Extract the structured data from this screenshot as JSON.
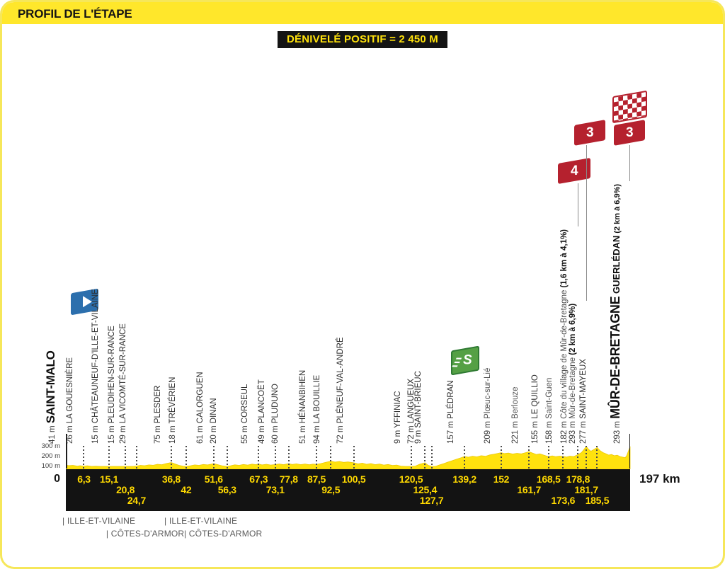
{
  "header": {
    "title": "PROFIL DE L'ÉTAPE"
  },
  "banner": {
    "text": "DÉNIVELÉ POSITIF = 2 450 M"
  },
  "axis": {
    "y_ticks": [
      "300 m",
      "200 m",
      "100 m"
    ],
    "start_label": "0",
    "end_label": "197 km"
  },
  "departments": [
    {
      "label": "| ILLE-ET-VILAINE",
      "km": 0,
      "row": 0
    },
    {
      "label": "| CÔTES-D'ARMOR",
      "km": 15.3,
      "row": 1
    },
    {
      "label": "| ILLE-ET-VILAINE",
      "km": 35.6,
      "row": 0
    },
    {
      "label": "| CÔTES-D'ARMOR",
      "km": 42.5,
      "row": 1
    }
  ],
  "colors": {
    "yellow": "#FFE72B",
    "profile_yellow": "#FFE20E",
    "bar_black": "#131313",
    "distance_yellow": "#FFD900",
    "climb_red": "#B5212E",
    "sprint_green": "#55A045",
    "start_blue": "#2C6FAD"
  },
  "chart_data": {
    "type": "area",
    "title": "Profil de l'étape",
    "xlabel": "km",
    "ylabel": "m",
    "xlim": [
      0,
      197
    ],
    "ylim": [
      0,
      320
    ],
    "total_km": 197,
    "denivele_positif_m": 2450,
    "markers": [
      {
        "km": 0,
        "dist": null,
        "dist_row": null,
        "elev": "41 m",
        "name": "SAINT-MALO",
        "kind": "start",
        "icon": "start"
      },
      {
        "km": 6.3,
        "dist": "6,3",
        "dist_row": 0,
        "elev": "26 m",
        "name": "LA GOUESNIÈRE",
        "kind": "town"
      },
      {
        "km": 15.1,
        "dist": "15,1",
        "dist_row": 0,
        "elev": "15 m",
        "name": "CHÂTEAUNEUF-D'ILLE-ET-VILAINE",
        "kind": "town"
      },
      {
        "km": 20.8,
        "dist": "20,8",
        "dist_row": 1,
        "elev": "15 m",
        "name": "PLEUDIHEN-SUR-RANCE",
        "kind": "town"
      },
      {
        "km": 24.7,
        "dist": "24,7",
        "dist_row": 2,
        "elev": "29 m",
        "name": "LA VICOMTÉ-SUR-RANCE",
        "kind": "town"
      },
      {
        "km": 36.8,
        "dist": "36,8",
        "dist_row": 0,
        "elev": "75 m",
        "name": "PLESDER",
        "kind": "town"
      },
      {
        "km": 42,
        "dist": "42",
        "dist_row": 1,
        "elev": "18 m",
        "name": "TRÉVÉRIEN",
        "kind": "town"
      },
      {
        "km": 51.6,
        "dist": "51,6",
        "dist_row": 0,
        "elev": "61 m",
        "name": "CALORGUEN",
        "kind": "town"
      },
      {
        "km": 56.3,
        "dist": "56,3",
        "dist_row": 1,
        "elev": "20 m",
        "name": "DINAN",
        "kind": "town"
      },
      {
        "km": 67.3,
        "dist": "67,3",
        "dist_row": 0,
        "elev": "55 m",
        "name": "CORSEUL",
        "kind": "town"
      },
      {
        "km": 73.1,
        "dist": "73,1",
        "dist_row": 1,
        "elev": "49 m",
        "name": "PLANCOËT",
        "kind": "town"
      },
      {
        "km": 77.8,
        "dist": "77,8",
        "dist_row": 0,
        "elev": "60 m",
        "name": "PLUDUNO",
        "kind": "town"
      },
      {
        "km": 87.5,
        "dist": "87,5",
        "dist_row": 0,
        "elev": "51 m",
        "name": "HÉNANBIHEN",
        "kind": "town"
      },
      {
        "km": 92.5,
        "dist": "92,5",
        "dist_row": 1,
        "elev": "94 m",
        "name": "LA BOUILLIE",
        "kind": "town"
      },
      {
        "km": 100.5,
        "dist": "100,5",
        "dist_row": 0,
        "elev": "72 m",
        "name": "PLÉNEUF-VAL-ANDRÉ",
        "kind": "town"
      },
      {
        "km": 120.5,
        "dist": "120,5",
        "dist_row": 0,
        "elev": "9 m",
        "name": "YFFINIAC",
        "kind": "town"
      },
      {
        "km": 125.4,
        "dist": "125,4",
        "dist_row": 1,
        "elev": "72 m",
        "name": "LANGUEUX",
        "kind": "town"
      },
      {
        "km": 127.7,
        "dist": "127,7",
        "dist_row": 2,
        "elev": "9 m",
        "name": "SAINT-BRIEUC",
        "kind": "town"
      },
      {
        "km": 139.2,
        "dist": "139,2",
        "dist_row": 0,
        "elev": "157 m",
        "name": "PLÉDRAN",
        "kind": "town",
        "icon": "sprint"
      },
      {
        "km": 152,
        "dist": "152",
        "dist_row": 0,
        "elev": "209 m",
        "name": "Plœuc-sur-Lié",
        "kind": "village"
      },
      {
        "km": 161.7,
        "dist": "161,7",
        "dist_row": 1,
        "elev": "221 m",
        "name": "Berlouze",
        "kind": "village"
      },
      {
        "km": 168.5,
        "dist": "168,5",
        "dist_row": 0,
        "elev": "155 m",
        "name": "LE QUILLIO",
        "kind": "town"
      },
      {
        "km": 173.6,
        "dist": "173,6",
        "dist_row": 2,
        "elev": "158 m",
        "name": "Saint-Guen",
        "kind": "village"
      },
      {
        "km": 178.8,
        "dist": "178,8",
        "dist_row": 0,
        "elev": "182 m",
        "name": "Côte du village de Mûr-de-Bretagne",
        "climb": "(1,6 km à 4,1%)",
        "kind": "village",
        "icon": "cat4"
      },
      {
        "km": 181.7,
        "dist": "181,7",
        "dist_row": 1,
        "elev": "293 m",
        "name": "Mûr-de-Bretagne",
        "climb": "(2 km à 6,9%)",
        "kind": "village",
        "icon": "cat3"
      },
      {
        "km": 185.5,
        "dist": "185,5",
        "dist_row": 2,
        "elev": "277 m",
        "name": "SAINT-MAYEUX",
        "kind": "town"
      },
      {
        "km": 197,
        "dist": null,
        "dist_row": null,
        "elev": "293 m",
        "name": "MÛR-DE-BRETAGNE",
        "subname": "GUERLÉDAN",
        "climb": "(2 km à 6,9%)",
        "kind": "finish",
        "icon": "finish"
      }
    ],
    "profile": [
      [
        0,
        41
      ],
      [
        1,
        34
      ],
      [
        2.5,
        38
      ],
      [
        4,
        28
      ],
      [
        5,
        33
      ],
      [
        6.3,
        26
      ],
      [
        7.5,
        31
      ],
      [
        9,
        20
      ],
      [
        10.5,
        26
      ],
      [
        12,
        18
      ],
      [
        13.5,
        24
      ],
      [
        15.1,
        15
      ],
      [
        16.5,
        22
      ],
      [
        18,
        16
      ],
      [
        19.5,
        21
      ],
      [
        20.8,
        15
      ],
      [
        22,
        22
      ],
      [
        23.5,
        18
      ],
      [
        24.7,
        29
      ],
      [
        26,
        38
      ],
      [
        27.5,
        33
      ],
      [
        29,
        44
      ],
      [
        30.5,
        39
      ],
      [
        32,
        52
      ],
      [
        33.5,
        47
      ],
      [
        35,
        62
      ],
      [
        36.8,
        75
      ],
      [
        38,
        58
      ],
      [
        39.5,
        38
      ],
      [
        41,
        26
      ],
      [
        42,
        18
      ],
      [
        43.5,
        32
      ],
      [
        45,
        44
      ],
      [
        46.5,
        38
      ],
      [
        48,
        50
      ],
      [
        49.5,
        44
      ],
      [
        51.6,
        61
      ],
      [
        53,
        48
      ],
      [
        54.5,
        32
      ],
      [
        56.3,
        20
      ],
      [
        57.5,
        32
      ],
      [
        59,
        45
      ],
      [
        60.5,
        38
      ],
      [
        62,
        50
      ],
      [
        63.5,
        42
      ],
      [
        65,
        54
      ],
      [
        66.3,
        48
      ],
      [
        67.3,
        55
      ],
      [
        68.5,
        44
      ],
      [
        70,
        52
      ],
      [
        71.5,
        42
      ],
      [
        73.1,
        49
      ],
      [
        74.5,
        56
      ],
      [
        76,
        48
      ],
      [
        77.8,
        60
      ],
      [
        79,
        50
      ],
      [
        80.5,
        58
      ],
      [
        82,
        48
      ],
      [
        83.5,
        56
      ],
      [
        85,
        46
      ],
      [
        86.3,
        54
      ],
      [
        87.5,
        51
      ],
      [
        89,
        62
      ],
      [
        90.5,
        76
      ],
      [
        92.5,
        94
      ],
      [
        94,
        82
      ],
      [
        95.5,
        90
      ],
      [
        97,
        78
      ],
      [
        98.5,
        84
      ],
      [
        100.5,
        72
      ],
      [
        102,
        58
      ],
      [
        103.5,
        68
      ],
      [
        105,
        52
      ],
      [
        106.5,
        62
      ],
      [
        108,
        48
      ],
      [
        109.5,
        56
      ],
      [
        111,
        42
      ],
      [
        112.5,
        50
      ],
      [
        114,
        36
      ],
      [
        115.5,
        42
      ],
      [
        117,
        28
      ],
      [
        118.5,
        20
      ],
      [
        120.5,
        9
      ],
      [
        122,
        28
      ],
      [
        123.5,
        52
      ],
      [
        125.4,
        72
      ],
      [
        126.5,
        38
      ],
      [
        127.7,
        9
      ],
      [
        129,
        22
      ],
      [
        130.5,
        44
      ],
      [
        132,
        62
      ],
      [
        133.5,
        84
      ],
      [
        135,
        102
      ],
      [
        136.5,
        122
      ],
      [
        138,
        140
      ],
      [
        139.2,
        157
      ],
      [
        140.5,
        148
      ],
      [
        142,
        160
      ],
      [
        143.5,
        152
      ],
      [
        145,
        168
      ],
      [
        146.5,
        160
      ],
      [
        148,
        178
      ],
      [
        149.5,
        188
      ],
      [
        151,
        200
      ],
      [
        152,
        209
      ],
      [
        153,
        196
      ],
      [
        154.5,
        204
      ],
      [
        156,
        190
      ],
      [
        157.5,
        200
      ],
      [
        159,
        192
      ],
      [
        160.3,
        206
      ],
      [
        161.7,
        221
      ],
      [
        163,
        202
      ],
      [
        164.3,
        184
      ],
      [
        165.5,
        192
      ],
      [
        166.8,
        176
      ],
      [
        168.5,
        155
      ],
      [
        169.8,
        166
      ],
      [
        171,
        154
      ],
      [
        172.3,
        162
      ],
      [
        173.6,
        158
      ],
      [
        174.8,
        150
      ],
      [
        176,
        162
      ],
      [
        177.3,
        156
      ],
      [
        178.8,
        182
      ],
      [
        180,
        210
      ],
      [
        180.8,
        248
      ],
      [
        181.7,
        293
      ],
      [
        182.5,
        252
      ],
      [
        183.3,
        228
      ],
      [
        184.2,
        248
      ],
      [
        185.5,
        277
      ],
      [
        186.5,
        236
      ],
      [
        187.5,
        210
      ],
      [
        188.5,
        194
      ],
      [
        189.5,
        176
      ],
      [
        190.5,
        184
      ],
      [
        191.5,
        168
      ],
      [
        192.5,
        174
      ],
      [
        193.5,
        156
      ],
      [
        194.5,
        148
      ],
      [
        195.3,
        142
      ],
      [
        195.8,
        168
      ],
      [
        196.4,
        230
      ],
      [
        197,
        293
      ]
    ]
  }
}
